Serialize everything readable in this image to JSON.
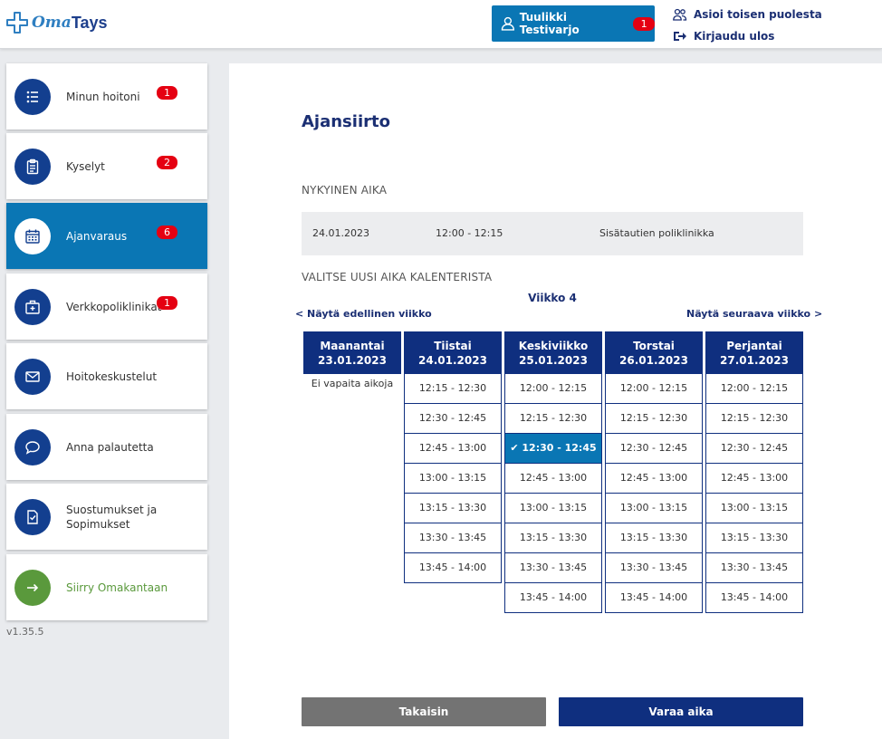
{
  "header": {
    "logo_oma": "Oma",
    "logo_tays": "Tays",
    "user_name": "Tuulikki Testivarjo",
    "user_badge": "1",
    "act_on_behalf": "Asioi toisen puolesta",
    "logout": "Kirjaudu ulos"
  },
  "sidebar": {
    "items": [
      {
        "label": "Minun hoitoni",
        "badge": "1",
        "icon": "list-icon"
      },
      {
        "label": "Kyselyt",
        "badge": "2",
        "icon": "clipboard-icon"
      },
      {
        "label": "Ajanvaraus",
        "badge": "6",
        "icon": "calendar-icon"
      },
      {
        "label": "Verkkopoliklinikat",
        "badge": "1",
        "icon": "medical-kit-icon"
      },
      {
        "label": "Hoitokeskustelut",
        "icon": "envelope-icon"
      },
      {
        "label": "Anna palautetta",
        "icon": "chat-bubble-icon"
      },
      {
        "label": "Suostumukset ja Sopimukset",
        "icon": "checklist-document-icon"
      },
      {
        "label": "Siirry Omakantaan",
        "icon": "arrow-right-icon"
      }
    ],
    "version": "v1.35.5"
  },
  "main": {
    "title": "Ajansiirto",
    "current_label": "NYKYINEN AIKA",
    "current": {
      "date": "24.01.2023",
      "time": "12:00 - 12:15",
      "clinic": "Sisätautien poliklinikka"
    },
    "choose_label": "VALITSE UUSI AIKA KALENTERISTA",
    "week": "Viikko 4",
    "prev_week": "<  Näytä edellinen viikko",
    "next_week": "Näytä seuraava viikko  >",
    "days": [
      {
        "name": "Maanantai",
        "date": "23.01.2023",
        "empty": "Ei vapaita aikoja",
        "slots": []
      },
      {
        "name": "Tiistai",
        "date": "24.01.2023",
        "slots": [
          "12:15 - 12:30",
          "12:30 - 12:45",
          "12:45 - 13:00",
          "13:00 - 13:15",
          "13:15 - 13:30",
          "13:30 - 13:45",
          "13:45 - 14:00"
        ]
      },
      {
        "name": "Keskiviikko",
        "date": "25.01.2023",
        "slots": [
          "12:00 - 12:15",
          "12:15 - 12:30",
          "12:30 - 12:45",
          "12:45 - 13:00",
          "13:00 - 13:15",
          "13:15 - 13:30",
          "13:30 - 13:45",
          "13:45 - 14:00"
        ]
      },
      {
        "name": "Torstai",
        "date": "26.01.2023",
        "slots": [
          "12:00 - 12:15",
          "12:15 - 12:30",
          "12:30 - 12:45",
          "12:45 - 13:00",
          "13:00 - 13:15",
          "13:15 - 13:30",
          "13:30 - 13:45",
          "13:45 - 14:00"
        ]
      },
      {
        "name": "Perjantai",
        "date": "27.01.2023",
        "slots": [
          "12:00 - 12:15",
          "12:15 - 12:30",
          "12:30 - 12:45",
          "12:45 - 13:00",
          "13:00 - 13:15",
          "13:15 - 13:30",
          "13:30 - 13:45",
          "13:45 - 14:00"
        ]
      }
    ],
    "selected_slot": "12:30 - 12:45",
    "back_button": "Takaisin",
    "book_button": "Varaa aika"
  },
  "colors": {
    "primary_dark": "#0f2f7f",
    "primary": "#0a76b4",
    "badge": "#e50012",
    "green": "#5a993c"
  }
}
